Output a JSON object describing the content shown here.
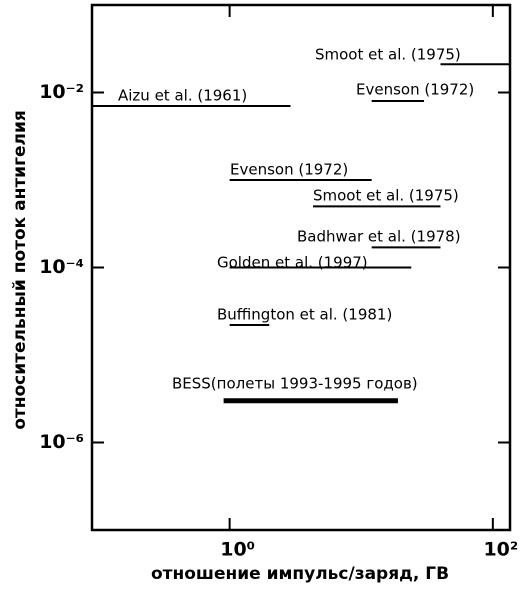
{
  "chart_data": {
    "type": "segments",
    "x_label": "отношение импульс/заряд, ГВ",
    "y_label": "относительный поток антигелия",
    "log_x": true,
    "log_y": true,
    "color": "#000000",
    "xlim": [
      0.09,
      135
    ],
    "ylim": [
      1e-07,
      0.1
    ],
    "xticks": [
      {
        "value": 1,
        "label": "10⁰"
      },
      {
        "value": 100,
        "label": "10²"
      }
    ],
    "yticks": [
      {
        "value": 0.01,
        "label": "10⁻²"
      },
      {
        "value": 0.0001,
        "label": "10⁻⁴"
      },
      {
        "value": 1e-06,
        "label": "10⁻⁶"
      }
    ],
    "series": [
      {
        "name": "Smoot et al. (1975)",
        "x": [
          40,
          135
        ],
        "values": [
          0.021,
          0.021
        ]
      },
      {
        "name": "Aizu et al. (1961)",
        "x": [
          0.09,
          2.9
        ],
        "values": [
          0.007,
          0.007
        ]
      },
      {
        "name": "Evenson (1972)",
        "x": [
          12,
          30
        ],
        "values": [
          0.008,
          0.008
        ]
      },
      {
        "name": "Evenson (1972)",
        "x": [
          1,
          12
        ],
        "values": [
          0.001,
          0.001
        ]
      },
      {
        "name": "Smoot et al. (1975)",
        "x": [
          4.3,
          40
        ],
        "values": [
          0.0005,
          0.0005
        ]
      },
      {
        "name": "Badhwar et al. (1978)",
        "x": [
          12,
          40
        ],
        "values": [
          0.00017,
          0.00017
        ]
      },
      {
        "name": "Golden et al. (1997)",
        "x": [
          1,
          24
        ],
        "values": [
          0.0001,
          0.0001
        ]
      },
      {
        "name": "Buffington et al. (1981)",
        "x": [
          1,
          2
        ],
        "values": [
          2.2e-05,
          2.2e-05
        ]
      },
      {
        "name": "BESS(полеты 1993-1995 годов)",
        "x": [
          0.9,
          19
        ],
        "values": [
          3e-06,
          3e-06
        ]
      }
    ]
  }
}
